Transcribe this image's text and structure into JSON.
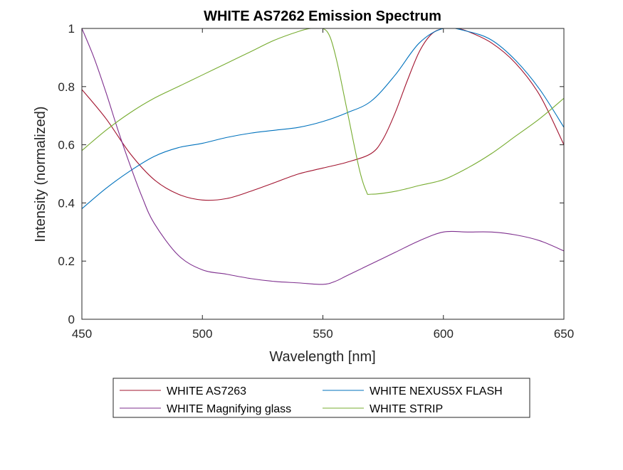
{
  "chart_data": {
    "type": "line",
    "title": "WHITE AS7262 Emission Spectrum",
    "xlabel": "Wavelength [nm]",
    "ylabel": "Intensity (normalized)",
    "xlim": [
      450,
      650
    ],
    "ylim": [
      0,
      1
    ],
    "xticks": [
      450,
      500,
      550,
      600,
      650
    ],
    "xtick_labels": [
      "450",
      "500",
      "550",
      "600",
      "650"
    ],
    "yticks": [
      0,
      0.2,
      0.4,
      0.6,
      0.8,
      1
    ],
    "ytick_labels": [
      "0",
      "0.2",
      "0.4",
      "0.6",
      "0.8",
      "1"
    ],
    "grid": false,
    "legend_position": "bottom-outside",
    "series": [
      {
        "name": "WHITE AS7263",
        "color": "#A2142F",
        "x": [
          450,
          460,
          470,
          480,
          490,
          500,
          510,
          520,
          530,
          540,
          550,
          560,
          570,
          575,
          580,
          585,
          590,
          595,
          600,
          605,
          610,
          620,
          630,
          640,
          650
        ],
        "y": [
          0.79,
          0.69,
          0.57,
          0.48,
          0.43,
          0.41,
          0.415,
          0.44,
          0.47,
          0.5,
          0.52,
          0.54,
          0.57,
          0.62,
          0.71,
          0.82,
          0.92,
          0.98,
          1.0,
          1.0,
          0.99,
          0.95,
          0.88,
          0.77,
          0.6
        ]
      },
      {
        "name": "WHITE NEXUS5X FLASH",
        "color": "#0072BD",
        "x": [
          450,
          460,
          470,
          480,
          490,
          500,
          510,
          520,
          530,
          540,
          550,
          560,
          570,
          580,
          590,
          600,
          610,
          620,
          630,
          640,
          650
        ],
        "y": [
          0.38,
          0.45,
          0.51,
          0.56,
          0.59,
          0.605,
          0.625,
          0.64,
          0.65,
          0.66,
          0.68,
          0.71,
          0.75,
          0.84,
          0.95,
          1.0,
          0.99,
          0.96,
          0.89,
          0.79,
          0.66
        ]
      },
      {
        "name": "WHITE Magnifying glass",
        "color": "#7E2F8E",
        "x": [
          450,
          455,
          460,
          465,
          470,
          475,
          480,
          490,
          500,
          510,
          520,
          530,
          540,
          550,
          555,
          560,
          570,
          580,
          590,
          600,
          610,
          620,
          630,
          640,
          650
        ],
        "y": [
          1.0,
          0.9,
          0.78,
          0.65,
          0.53,
          0.42,
          0.33,
          0.22,
          0.17,
          0.155,
          0.14,
          0.13,
          0.125,
          0.12,
          0.13,
          0.15,
          0.19,
          0.23,
          0.27,
          0.3,
          0.3,
          0.3,
          0.29,
          0.27,
          0.235
        ]
      },
      {
        "name": "WHITE STRIP",
        "color": "#77AC30",
        "x": [
          450,
          460,
          470,
          480,
          490,
          500,
          510,
          520,
          530,
          540,
          545,
          550,
          553,
          556,
          560,
          565,
          568,
          570,
          580,
          590,
          600,
          610,
          620,
          630,
          640,
          650
        ],
        "y": [
          0.58,
          0.65,
          0.71,
          0.76,
          0.8,
          0.84,
          0.88,
          0.92,
          0.96,
          0.99,
          1.0,
          1.0,
          0.97,
          0.88,
          0.72,
          0.52,
          0.44,
          0.43,
          0.44,
          0.46,
          0.48,
          0.52,
          0.57,
          0.63,
          0.69,
          0.76
        ]
      }
    ]
  }
}
